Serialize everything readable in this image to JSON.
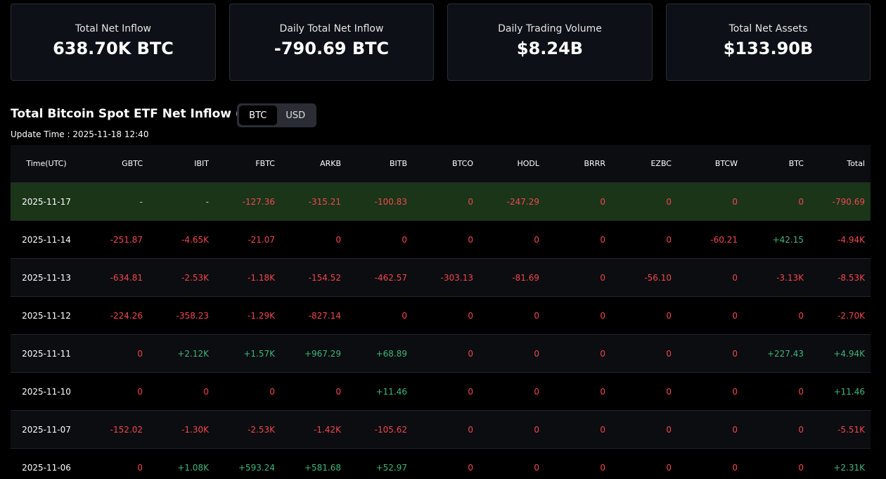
{
  "cards": [
    {
      "label": "Total Net Inflow",
      "value": "638.70K BTC"
    },
    {
      "label": "Daily Total Net Inflow",
      "value": "-790.69 BTC"
    },
    {
      "label": "Daily Trading Volume",
      "value": "$8.24B"
    },
    {
      "label": "Total Net Assets",
      "value": "$133.90B"
    }
  ],
  "section": {
    "title": "Total Bitcoin Spot ETF Net Inflow (BTC)",
    "toggle": [
      "BTC",
      "USD"
    ],
    "update_time": "Update Time : 2025-11-18 12:40"
  },
  "table": {
    "headers": [
      "Time(UTC)",
      "GBTC",
      "IBIT",
      "FBTC",
      "ARKB",
      "BITB",
      "BTCO",
      "HODL",
      "BRRR",
      "EZBC",
      "BTCW",
      "BTC",
      "Total"
    ],
    "rows": [
      [
        "2025-11-17",
        "-",
        "-",
        "-127.36",
        "-315.21",
        "-100.83",
        "0",
        "-247.29",
        "0",
        "0",
        "0",
        "0",
        "-790.69"
      ],
      [
        "2025-11-14",
        "-251.87",
        "-4.65K",
        "-21.07",
        "0",
        "0",
        "0",
        "0",
        "0",
        "0",
        "-60.21",
        "+42.15",
        "-4.94K"
      ],
      [
        "2025-11-13",
        "-634.81",
        "-2.53K",
        "-1.18K",
        "-154.52",
        "-462.57",
        "-303.13",
        "-81.69",
        "0",
        "-56.10",
        "0",
        "-3.13K",
        "-8.53K"
      ],
      [
        "2025-11-12",
        "-224.26",
        "-358.23",
        "-1.29K",
        "-827.14",
        "0",
        "0",
        "0",
        "0",
        "0",
        "0",
        "0",
        "-2.70K"
      ],
      [
        "2025-11-11",
        "0",
        "+2.12K",
        "+1.57K",
        "+967.29",
        "+68.89",
        "0",
        "0",
        "0",
        "0",
        "0",
        "+227.43",
        "+4.94K"
      ],
      [
        "2025-11-10",
        "0",
        "0",
        "0",
        "0",
        "+11.46",
        "0",
        "0",
        "0",
        "0",
        "0",
        "0",
        "+11.46"
      ],
      [
        "2025-11-07",
        "-152.02",
        "-1.30K",
        "-2.53K",
        "-1.42K",
        "-105.62",
        "0",
        "0",
        "0",
        "0",
        "0",
        "0",
        "-5.51K"
      ],
      [
        "2025-11-06",
        "0",
        "+1.08K",
        "+593.24",
        "+581.68",
        "+52.97",
        "0",
        "0",
        "0",
        "0",
        "0",
        "0",
        "+2.31K"
      ]
    ]
  }
}
